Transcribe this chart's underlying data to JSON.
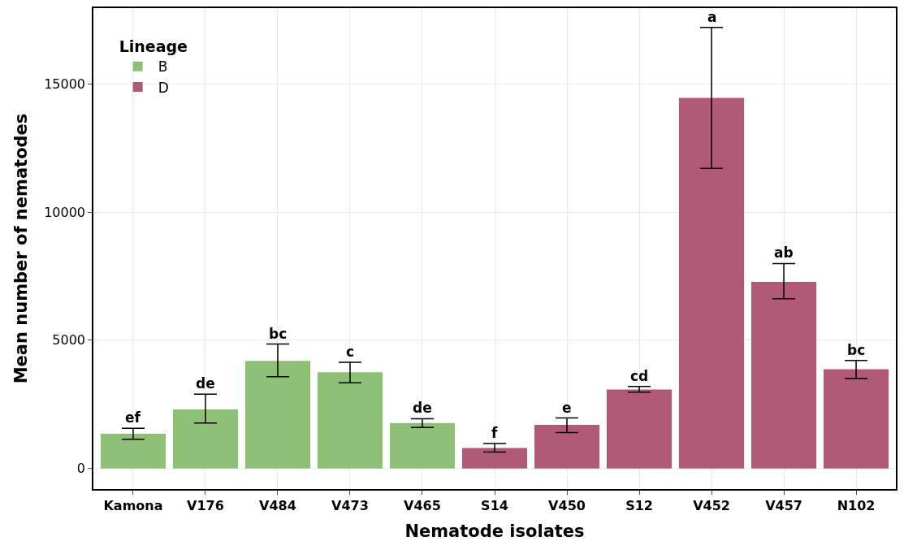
{
  "chart_data": {
    "type": "bar",
    "xlabel": "Nematode isolates",
    "ylabel": "Mean number of nematodes",
    "legend_title": "Lineage",
    "categories": [
      "Kamona",
      "V176",
      "V484",
      "V473",
      "V465",
      "S14",
      "V450",
      "S12",
      "V452",
      "V457",
      "N102"
    ],
    "series": [
      {
        "name": "B",
        "color": "#8dbf74",
        "values": [
          1350,
          2300,
          4200,
          3750,
          1770,
          null,
          null,
          null,
          null,
          null,
          null
        ],
        "errors": [
          [
            1140,
            1570
          ],
          [
            1770,
            2900
          ],
          [
            3580,
            4850
          ],
          [
            3340,
            4140
          ],
          [
            1600,
            1940
          ],
          null,
          null,
          null,
          null,
          null,
          null
        ]
      },
      {
        "name": "D",
        "color": "#b05a78",
        "values": [
          null,
          null,
          null,
          null,
          null,
          800,
          1700,
          3080,
          14450,
          7280,
          3870
        ],
        "errors": [
          null,
          null,
          null,
          null,
          null,
          [
            640,
            970
          ],
          [
            1400,
            1970
          ],
          [
            2980,
            3200
          ],
          [
            11700,
            17200
          ],
          [
            6620,
            7990
          ],
          [
            3510,
            4210
          ]
        ]
      }
    ],
    "annotations": [
      {
        "text": "ef",
        "x": "Kamona",
        "y": 1570
      },
      {
        "text": "de",
        "x": "V176",
        "y": 2900
      },
      {
        "text": "bc",
        "x": "V484",
        "y": 4850
      },
      {
        "text": "c",
        "x": "V473",
        "y": 4140
      },
      {
        "text": "de",
        "x": "V465",
        "y": 1940
      },
      {
        "text": "f",
        "x": "S14",
        "y": 970
      },
      {
        "text": "e",
        "x": "V450",
        "y": 1970
      },
      {
        "text": "cd",
        "x": "S12",
        "y": 3200
      },
      {
        "text": "a",
        "x": "V452",
        "y": 17200
      },
      {
        "text": "ab",
        "x": "V457",
        "y": 7990
      },
      {
        "text": "bc",
        "x": "N102",
        "y": 4210
      }
    ],
    "ylim": [
      -800,
      17950
    ],
    "yticks": [
      0,
      5000,
      10000,
      15000
    ],
    "grid": true,
    "legend": "top left"
  }
}
